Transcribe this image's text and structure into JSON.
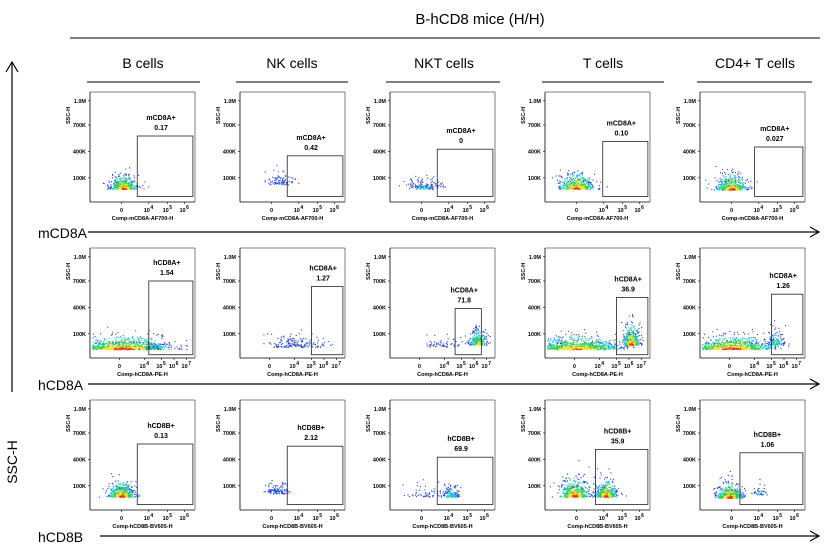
{
  "figure": {
    "title": "B-hCD8 mice (H/H)",
    "y_axis_label": "SSC-H",
    "columns": [
      "B cells",
      "NK cells",
      "NKT cells",
      "T cells",
      "CD4+ T cells"
    ],
    "rows": [
      {
        "label": "mCD8A",
        "x_label": "Comp-mCD8A-AF700-H",
        "x_ticks": [
          "0",
          "10^4",
          "10^5",
          "10^6"
        ]
      },
      {
        "label": "hCD8A",
        "x_label": "Comp-hCD8A-PE-H",
        "x_ticks": [
          "0",
          "10^4",
          "10^5",
          "10^6",
          "10^7"
        ]
      },
      {
        "label": "hCD8B",
        "x_label": "Comp-hCD8B-BV605-H",
        "x_ticks": [
          "0",
          "10^4",
          "10^5",
          "10^6"
        ]
      }
    ],
    "y_ticks": [
      "1.0M",
      "700K",
      "400K",
      "100K"
    ],
    "y_panel_label": "SSC-H"
  },
  "chart_data": [
    {
      "type": "scatter",
      "row": "mCD8A",
      "column": "B cells",
      "gate": "mCD8A+",
      "percent": "0.17"
    },
    {
      "type": "scatter",
      "row": "mCD8A",
      "column": "NK cells",
      "gate": "mCD8A+",
      "percent": "0.42"
    },
    {
      "type": "scatter",
      "row": "mCD8A",
      "column": "NKT cells",
      "gate": "mCD8A+",
      "percent": "0"
    },
    {
      "type": "scatter",
      "row": "mCD8A",
      "column": "T cells",
      "gate": "mCD8A+",
      "percent": "0.10"
    },
    {
      "type": "scatter",
      "row": "mCD8A",
      "column": "CD4+ T cells",
      "gate": "mCD8A+",
      "percent": "0.027"
    },
    {
      "type": "scatter",
      "row": "hCD8A",
      "column": "B cells",
      "gate": "hCD8A+",
      "percent": "1.54"
    },
    {
      "type": "scatter",
      "row": "hCD8A",
      "column": "NK cells",
      "gate": "hCD8A+",
      "percent": "1.27"
    },
    {
      "type": "scatter",
      "row": "hCD8A",
      "column": "NKT cells",
      "gate": "hCD8A+",
      "percent": "71.8"
    },
    {
      "type": "scatter",
      "row": "hCD8A",
      "column": "T cells",
      "gate": "hCD8A+",
      "percent": "36.9"
    },
    {
      "type": "scatter",
      "row": "hCD8A",
      "column": "CD4+ T cells",
      "gate": "hCD8A+",
      "percent": "1.26"
    },
    {
      "type": "scatter",
      "row": "hCD8B",
      "column": "B cells",
      "gate": "hCD8B+",
      "percent": "0.13"
    },
    {
      "type": "scatter",
      "row": "hCD8B",
      "column": "NK cells",
      "gate": "hCD8B+",
      "percent": "2.12"
    },
    {
      "type": "scatter",
      "row": "hCD8B",
      "column": "NKT cells",
      "gate": "hCD8B+",
      "percent": "69.9"
    },
    {
      "type": "scatter",
      "row": "hCD8B",
      "column": "T cells",
      "gate": "hCD8B+",
      "percent": "35.9"
    },
    {
      "type": "scatter",
      "row": "hCD8B",
      "column": "CD4+ T cells",
      "gate": "hCD8B+",
      "percent": "1.06"
    }
  ],
  "colors": {
    "density_low": "#1f3fd9",
    "density_mid": "#16c8d8",
    "density_mid2": "#2fd04a",
    "density_high": "#f5e12a",
    "density_peak": "#e8321e"
  }
}
